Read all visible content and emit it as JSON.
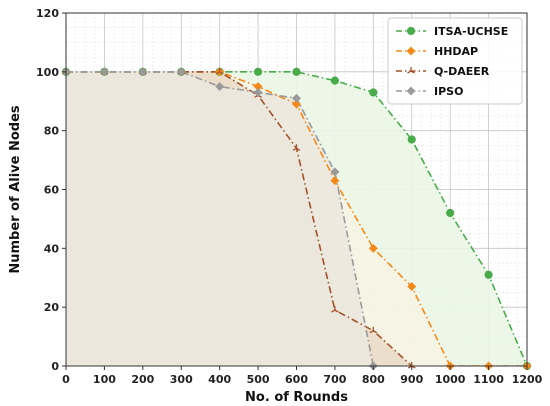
{
  "chart_data": {
    "type": "line",
    "title": "",
    "xlabel": "No. of Rounds",
    "ylabel": "Number of Alive Nodes",
    "xlim": [
      0,
      1200
    ],
    "ylim": [
      0,
      120
    ],
    "xticks": [
      0,
      100,
      200,
      300,
      400,
      500,
      600,
      700,
      800,
      900,
      1000,
      1100,
      1200
    ],
    "yticks": [
      0,
      20,
      40,
      60,
      80,
      100,
      120
    ],
    "grid": true,
    "legend_position": "top-right",
    "series": [
      {
        "name": "ITSA-UCHSE",
        "color": "#4aab4a",
        "marker": "circle",
        "line_style": "dashdot",
        "fill": "#eaf6e6",
        "x": [
          0,
          100,
          200,
          300,
          400,
          500,
          600,
          700,
          800,
          900,
          1000,
          1100,
          1200
        ],
        "y": [
          100,
          100,
          100,
          100,
          100,
          100,
          100,
          97,
          93,
          77,
          52,
          31,
          0
        ]
      },
      {
        "name": "HHDAP",
        "color": "#f5891a",
        "marker": "diamond",
        "line_style": "dashdot",
        "fill": "#f7f3e4",
        "x": [
          0,
          100,
          200,
          300,
          400,
          500,
          600,
          700,
          800,
          900,
          1000,
          1100,
          1200
        ],
        "y": [
          100,
          100,
          100,
          100,
          100,
          95,
          89,
          63,
          40,
          27,
          0,
          0,
          0
        ]
      },
      {
        "name": "Q-DAEER",
        "color": "#a2522a",
        "marker": "tri",
        "line_style": "dashdot",
        "fill": "#eadcc8",
        "x": [
          0,
          100,
          200,
          300,
          400,
          500,
          600,
          700,
          800,
          900
        ],
        "y": [
          100,
          100,
          100,
          100,
          100,
          92,
          74,
          19,
          12,
          0
        ]
      },
      {
        "name": "IPSO",
        "color": "#9a9a9a",
        "marker": "diamond",
        "line_style": "dashdot",
        "fill": "#ece8de",
        "x": [
          0,
          100,
          200,
          300,
          400,
          500,
          600,
          700,
          800
        ],
        "y": [
          100,
          100,
          100,
          100,
          95,
          93,
          91,
          66,
          0
        ]
      }
    ]
  }
}
